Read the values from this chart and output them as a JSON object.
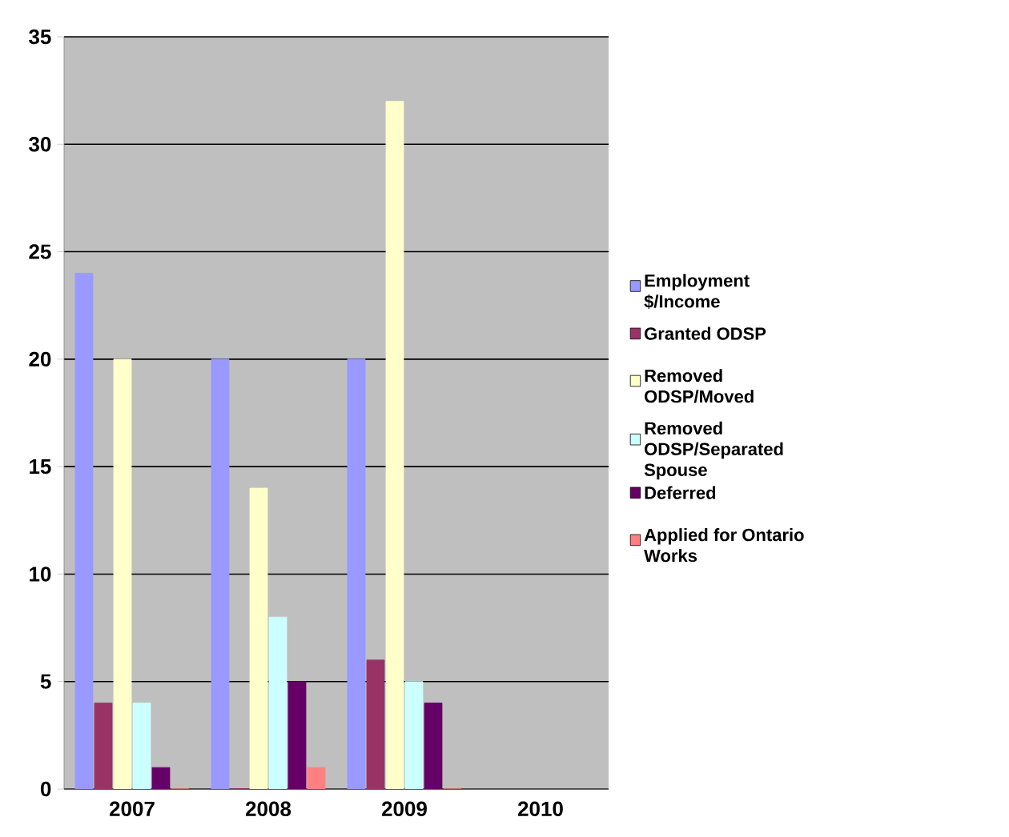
{
  "chart_data": {
    "type": "bar",
    "categories": [
      "2007",
      "2008",
      "2009",
      "2010"
    ],
    "series": [
      {
        "name": "Employment $/Income",
        "color": "#9999ff",
        "values": [
          24,
          20,
          20,
          null
        ]
      },
      {
        "name": "Granted ODSP",
        "color": "#993366",
        "values": [
          4,
          0,
          6,
          null
        ]
      },
      {
        "name": "Removed ODSP/Moved",
        "color": "#ffffcc",
        "values": [
          20,
          14,
          32,
          null
        ]
      },
      {
        "name": "Removed ODSP/Separated Spouse",
        "color": "#ccffff",
        "values": [
          4,
          8,
          5,
          null
        ]
      },
      {
        "name": "Deferred",
        "color": "#660066",
        "values": [
          1,
          5,
          4,
          null
        ]
      },
      {
        "name": "Applied for Ontario Works",
        "color": "#ff8080",
        "values": [
          0,
          1,
          0,
          null
        ]
      }
    ],
    "ylim": [
      0,
      35
    ],
    "yticks": [
      0,
      5,
      10,
      15,
      20,
      25,
      30,
      35
    ],
    "grid": "y",
    "legend": "right"
  }
}
